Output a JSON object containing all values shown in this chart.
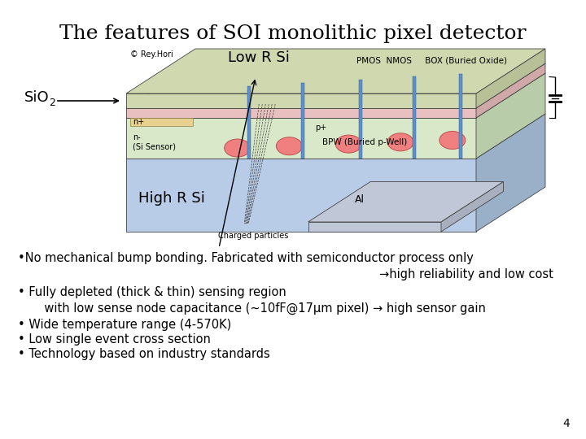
{
  "title": "The features of SOI monolithic pixel detector",
  "title_fontsize": 18,
  "background_color": "#ffffff",
  "sio2_label": "SiO",
  "sio2_sub": "2",
  "low_r_si_label": "Low R Si",
  "high_r_si_label": "High R Si",
  "copyright": "© Rey.Hori",
  "bullet_lines": [
    [
      "•No mechanical bump bonding. Fabricated with semiconductor process only",
      "left"
    ],
    [
      "→high reliability and low cost",
      "right"
    ],
    [
      "• Fully depleted (thick & thin) sensing region",
      "left"
    ],
    [
      "       with low sense node capacitance (~10fF@17μm pixel) → high sensor gain",
      "left"
    ],
    [
      "• Wide temperature range (4-570K)",
      "left"
    ],
    [
      "• Low single event cross section",
      "left"
    ],
    [
      "• Technology based on industry standards",
      "left"
    ]
  ],
  "page_number": "4",
  "text_fontsize": 10.5,
  "label_fontsize": 13,
  "small_fontsize": 7.5,
  "hi_r_color": "#b8cce8",
  "hi_r_side_color": "#9aafc8",
  "sensor_color": "#d8e8c8",
  "sensor_side_color": "#b8ccaa",
  "box_color": "#e8c0c0",
  "box_side_color": "#d0a8a8",
  "top_si_color": "#d0d8b0",
  "top_si_side_color": "#b8c098",
  "bump_color": "#f08080",
  "bump_edge": "#c05050",
  "al_color": "#c0c8d8",
  "al_side_color": "#a8b0c0",
  "electrode_color": "#6090c8",
  "dashed_color": "#404040"
}
